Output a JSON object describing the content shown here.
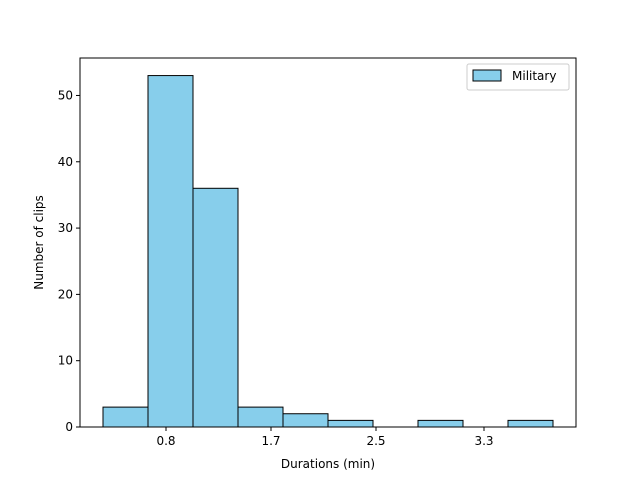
{
  "chart_data": {
    "type": "bar",
    "title": "",
    "xlabel": "Durations (min)",
    "ylabel": "Number of clips",
    "x_ticks": [
      "0.8",
      "1.7",
      "2.5",
      "3.3"
    ],
    "y_ticks": [
      0,
      10,
      20,
      30,
      40,
      50
    ],
    "ylim": [
      0,
      55.65
    ],
    "grid": false,
    "legend_position": "top-right",
    "series": [
      {
        "name": "Military",
        "color": "#87CEEB",
        "edge_color": "#000000",
        "values": [
          3,
          53,
          36,
          3,
          2,
          1,
          0,
          1,
          0,
          1
        ]
      }
    ]
  }
}
